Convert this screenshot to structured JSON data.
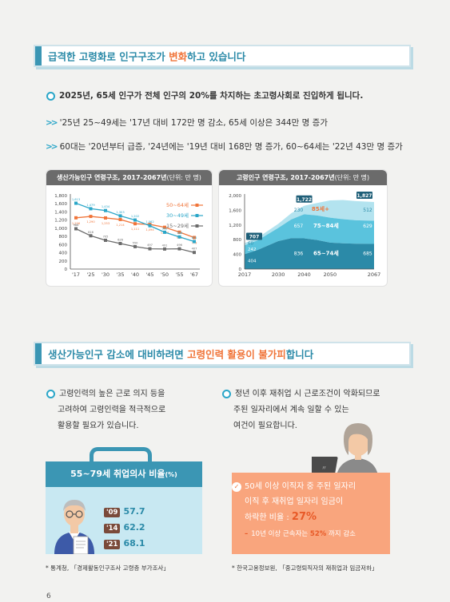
{
  "section1": {
    "title_part1": "급격한 고령화로 인구구조가 ",
    "title_highlight": "변화",
    "title_part2": "하고 있습니다",
    "headline": "2025년, 65세 인구가 전체 인구의 20%를 차지하는 초고령사회로 진입하게 됩니다.",
    "bullet1": "'25년 25~49세는 '17년 대비 172만 명 감소, 65세 이상은 344만 명 증가",
    "bullet2": "60대는 '20년부터 급증, '24년에는 '19년 대비 168만 명 증가, 60~64세는 '22년 43만 명 증가",
    "arrows": ">>"
  },
  "chart_data": [
    {
      "type": "line",
      "title": "생산가능인구 연령구조, 2017-2067년",
      "unit_note": "(단위: 만 명)",
      "categories": [
        "'17",
        "'25",
        "'30",
        "'35",
        "'40",
        "'45",
        "'50",
        "'55",
        "'67"
      ],
      "yticks": [
        "0",
        "200",
        "400",
        "600",
        "800",
        "1,000",
        "1,200",
        "1,400",
        "1,600",
        "1,800"
      ],
      "ylim": [
        0,
        1800
      ],
      "series": [
        {
          "name": "50~64세",
          "color": "#f0753a",
          "values": [
            1256,
            1290,
            1253,
            1214,
            1111,
            1094,
            1024,
            904,
            773
          ],
          "labels": [
            "1,256",
            "1,290",
            "1,253",
            "1,214",
            "1,111",
            "1,094",
            "1,024",
            "904",
            "773"
          ]
        },
        {
          "name": "30~49세",
          "color": "#2aa6c8",
          "values": [
            1613,
            1479,
            1434,
            1303,
            1202,
            1062,
            902,
            788,
            674
          ],
          "labels": [
            "1,613",
            "1,479",
            "1,434",
            "1,303",
            "1,202",
            "1,062",
            "902",
            "788",
            "674"
          ]
        },
        {
          "name": "15~29세",
          "color": "#6b6b6b",
          "values": [
            988,
            816,
            705,
            626,
            550,
            497,
            491,
            496,
            407
          ],
          "labels": [
            "988",
            "816",
            "705",
            "626",
            "550",
            "497",
            "491",
            "496",
            "407"
          ]
        }
      ]
    },
    {
      "type": "area",
      "title": "고령인구 연령구조, 2017-2067년",
      "unit_note": "(단위: 만 명)",
      "x": [
        "2017",
        "2030",
        "2040",
        "2050",
        "2067"
      ],
      "yticks": [
        "0",
        "400",
        "800",
        "1,200",
        "1,600",
        "2,000"
      ],
      "ylim": [
        0,
        2000
      ],
      "totals": [
        "707",
        "1,722",
        "1,827"
      ],
      "series": [
        {
          "name": "65~74세",
          "color": "#2b8aa8",
          "labels": [
            "404",
            "836",
            "685"
          ]
        },
        {
          "name": "75~84세",
          "color": "#5ac3dd",
          "labels": [
            "242",
            "657",
            "629"
          ]
        },
        {
          "name": "85세+",
          "color": "#b3e3ef",
          "labels": [
            "60",
            "230",
            "512"
          ]
        }
      ]
    }
  ],
  "section2": {
    "title_part1": "생산가능인구 감소에 대비하려면 ",
    "title_highlight": "고령인력 활용이 불가피",
    "title_part2": "합니다",
    "left_para": [
      "고령인력의 높은 근로 의지 등을",
      "고려하여 고령인력을 적극적으로",
      "활용할 필요가 있습니다."
    ],
    "right_para": [
      "정년 이후 재취업 시 근로조건이 악화되므로",
      "주된 일자리에서 계속 일할 수 있는",
      "여건이 필요합니다."
    ],
    "rate_title": "55~79세 취업의사 비율",
    "rate_unit": "(%)",
    "rates": [
      {
        "year": "'09",
        "value": "57.7"
      },
      {
        "year": "'14",
        "value": "62.2"
      },
      {
        "year": "'21",
        "value": "68.1"
      }
    ],
    "card_lines": [
      "50세 이상 이직자 중 주된 일자리",
      "이직 후 재취업 일자리 임금이",
      "하락한 비율 : "
    ],
    "card_pct": "27%",
    "card_sub_prefix": "10년 이상 근속자는 ",
    "card_sub_pct": "52%",
    "card_sub_suffix": " 까지 감소",
    "source_left": "* 통계청, 「경제활동인구조사 고령층 부가조사」",
    "source_right": "* 한국고용정보원, 「중고령퇴직자의 재취업과 임금저하」"
  },
  "page_number": "6"
}
